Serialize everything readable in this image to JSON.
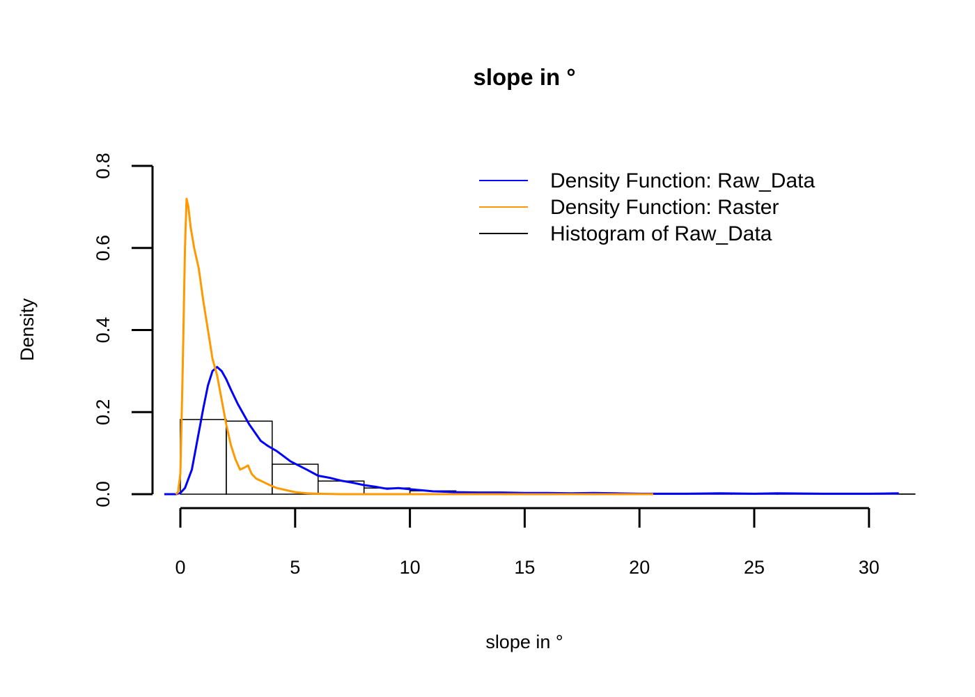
{
  "chart_data": {
    "type": "area",
    "title": "slope in °",
    "xlabel": "slope in °",
    "ylabel": "Density",
    "xlim": [
      -0.7,
      31.3
    ],
    "ylim": [
      0,
      0.8
    ],
    "x_ticks": [
      "0",
      "5",
      "10",
      "15",
      "20",
      "25",
      "30"
    ],
    "y_ticks": [
      "0.0",
      "0.2",
      "0.4",
      "0.6",
      "0.8"
    ],
    "x_tick_values": [
      0,
      5,
      10,
      15,
      20,
      25,
      30
    ],
    "y_tick_values": [
      0,
      0.2,
      0.4,
      0.6,
      0.8
    ],
    "legend_position": "top-right",
    "legend": [
      {
        "label": "Density Function: Raw_Data",
        "color": "#0000ff"
      },
      {
        "label": "Density Function: Raster",
        "color": "#ff9900"
      },
      {
        "label": "Histogram of Raw_Data",
        "color": "#000000"
      }
    ],
    "histogram": {
      "name": "Histogram of Raw_Data",
      "color": "#000000",
      "bins": [
        {
          "x0": 0,
          "x1": 2,
          "value": 0.182
        },
        {
          "x0": 2,
          "x1": 4,
          "value": 0.178
        },
        {
          "x0": 4,
          "x1": 6,
          "value": 0.073
        },
        {
          "x0": 6,
          "x1": 8,
          "value": 0.032
        },
        {
          "x0": 8,
          "x1": 10,
          "value": 0.015
        },
        {
          "x0": 10,
          "x1": 12,
          "value": 0.008
        },
        {
          "x0": 12,
          "x1": 14,
          "value": 0.004
        },
        {
          "x0": 14,
          "x1": 16,
          "value": 0.003
        },
        {
          "x0": 16,
          "x1": 18,
          "value": 0.002
        },
        {
          "x0": 18,
          "x1": 20,
          "value": 0.002
        },
        {
          "x0": 20,
          "x1": 22,
          "value": 0.001
        },
        {
          "x0": 22,
          "x1": 24,
          "value": 0.001
        },
        {
          "x0": 24,
          "x1": 26,
          "value": 0.001
        },
        {
          "x0": 26,
          "x1": 28,
          "value": 0.001
        },
        {
          "x0": 28,
          "x1": 30,
          "value": 0.0005
        },
        {
          "x0": 30,
          "x1": 32,
          "value": 0.0005
        }
      ]
    },
    "series": [
      {
        "name": "Density Function: Raw_Data",
        "color": "#0000ff",
        "x": [
          -0.7,
          -0.2,
          0,
          0.2,
          0.5,
          0.8,
          1.0,
          1.2,
          1.4,
          1.6,
          1.8,
          2.0,
          2.2,
          2.5,
          3.0,
          3.5,
          3.8,
          4.2,
          4.8,
          5.5,
          6.0,
          6.5,
          7.0,
          7.5,
          8.0,
          8.5,
          9.0,
          9.5,
          10.0,
          11.0,
          12.0,
          13.0,
          14.0,
          15.0,
          16.0,
          17.0,
          18.0,
          19.0,
          20.0,
          22.0,
          23.5,
          25.0,
          26.0,
          28.0,
          30.0,
          31.3
        ],
        "y": [
          0.0,
          0.0,
          0.003,
          0.015,
          0.06,
          0.15,
          0.21,
          0.265,
          0.3,
          0.31,
          0.3,
          0.28,
          0.255,
          0.22,
          0.17,
          0.13,
          0.118,
          0.105,
          0.08,
          0.06,
          0.045,
          0.04,
          0.033,
          0.028,
          0.022,
          0.018,
          0.013,
          0.015,
          0.012,
          0.007,
          0.005,
          0.004,
          0.004,
          0.003,
          0.003,
          0.002,
          0.003,
          0.002,
          0.001,
          0.001,
          0.002,
          0.001,
          0.002,
          0.001,
          0.001,
          0.002
        ]
      },
      {
        "name": "Density Function: Raster",
        "color": "#ff9900",
        "x": [
          -0.2,
          -0.1,
          0.0,
          0.1,
          0.2,
          0.27,
          0.35,
          0.45,
          0.6,
          0.8,
          1.0,
          1.2,
          1.4,
          1.6,
          1.8,
          2.0,
          2.2,
          2.4,
          2.6,
          2.8,
          2.95,
          3.1,
          3.3,
          3.6,
          3.9,
          4.2,
          4.6,
          5.0,
          5.5,
          6.0,
          7.0,
          8.0,
          10.0,
          12.0,
          15.0,
          18.0,
          20.6
        ],
        "y": [
          0.0,
          0.005,
          0.05,
          0.3,
          0.6,
          0.72,
          0.7,
          0.65,
          0.6,
          0.55,
          0.47,
          0.4,
          0.33,
          0.29,
          0.23,
          0.17,
          0.12,
          0.085,
          0.06,
          0.065,
          0.07,
          0.05,
          0.038,
          0.03,
          0.022,
          0.015,
          0.01,
          0.005,
          0.002,
          0.001,
          0.0,
          0.0,
          0.0,
          0.0,
          0.0,
          0.0,
          0.0
        ]
      }
    ]
  }
}
